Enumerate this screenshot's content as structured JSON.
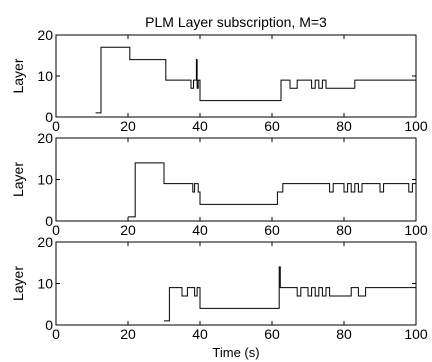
{
  "chart_data": [
    {
      "type": "line",
      "title": "PLM Layer subscription, M=3",
      "ylabel": "Layer",
      "xlabel": "",
      "xlim": [
        0,
        100
      ],
      "ylim": [
        0,
        20
      ],
      "xticks": [
        0,
        20,
        40,
        60,
        80,
        100
      ],
      "yticks": [
        0,
        10,
        20
      ],
      "grid": false,
      "series": [
        {
          "x": [
            11,
            12.5,
            12.5,
            20.5,
            20.5,
            30.5,
            30.5,
            37.5,
            37.5,
            38.2,
            38.2,
            39,
            39,
            39.2,
            39.2,
            39.5,
            39.5,
            40,
            40,
            62.5,
            62.5,
            65,
            65,
            67,
            67,
            71,
            71,
            72,
            72,
            73,
            73,
            74,
            74,
            75,
            75,
            83,
            83,
            84,
            84,
            100
          ],
          "y": [
            1,
            1,
            17,
            17,
            14,
            14,
            9,
            9,
            7,
            7,
            9,
            9,
            14,
            14,
            7,
            7,
            9,
            9,
            4,
            4,
            9,
            9,
            7,
            7,
            9,
            9,
            7,
            7,
            9,
            9,
            7,
            7,
            9,
            9,
            7,
            7,
            9,
            9,
            9,
            9
          ]
        }
      ]
    },
    {
      "type": "line",
      "title": "",
      "ylabel": "Layer",
      "xlabel": "",
      "xlim": [
        0,
        100
      ],
      "ylim": [
        0,
        20
      ],
      "xticks": [
        0,
        20,
        40,
        60,
        80,
        100
      ],
      "yticks": [
        0,
        10,
        20
      ],
      "grid": false,
      "series": [
        {
          "x": [
            20,
            22,
            22,
            30,
            30,
            38,
            38,
            38.5,
            38.5,
            39.5,
            39.5,
            40,
            40,
            61.5,
            61.5,
            63,
            63,
            64,
            64,
            76,
            76,
            77,
            77,
            80,
            80,
            81,
            81,
            82,
            82,
            83,
            83,
            84,
            84,
            85,
            85,
            90,
            90,
            91,
            91,
            98,
            98,
            99,
            99,
            100
          ],
          "y": [
            1,
            1,
            14,
            14,
            9,
            9,
            7,
            7,
            9,
            9,
            7,
            7,
            4,
            4,
            7,
            7,
            9,
            9,
            9,
            9,
            7,
            7,
            9,
            9,
            7,
            7,
            9,
            9,
            7,
            7,
            9,
            9,
            7,
            7,
            9,
            9,
            7,
            7,
            9,
            9,
            7,
            7,
            9,
            9
          ]
        }
      ]
    },
    {
      "type": "line",
      "title": "",
      "ylabel": "Layer",
      "xlabel": "Time (s)",
      "xlim": [
        0,
        100
      ],
      "ylim": [
        0,
        20
      ],
      "xticks": [
        0,
        20,
        40,
        60,
        80,
        100
      ],
      "yticks": [
        0,
        10,
        20
      ],
      "grid": false,
      "series": [
        {
          "x": [
            30,
            31.5,
            31.5,
            35,
            35,
            36.5,
            36.5,
            38.5,
            38.5,
            39.2,
            39.2,
            40,
            40,
            62,
            62,
            62.3,
            62.3,
            67,
            67,
            68,
            68,
            70,
            70,
            71,
            71,
            72,
            72,
            73,
            73,
            74,
            74,
            75,
            75,
            76,
            76,
            82,
            82,
            84,
            84,
            86,
            86,
            88,
            88,
            100
          ],
          "y": [
            1,
            1,
            9,
            9,
            7,
            7,
            9,
            9,
            7,
            7,
            9,
            9,
            4,
            4,
            14,
            14,
            9,
            9,
            7,
            7,
            9,
            9,
            7,
            7,
            9,
            9,
            7,
            7,
            9,
            9,
            7,
            7,
            9,
            9,
            7,
            7,
            9,
            9,
            7,
            7,
            9,
            9,
            9,
            9
          ]
        }
      ]
    }
  ]
}
